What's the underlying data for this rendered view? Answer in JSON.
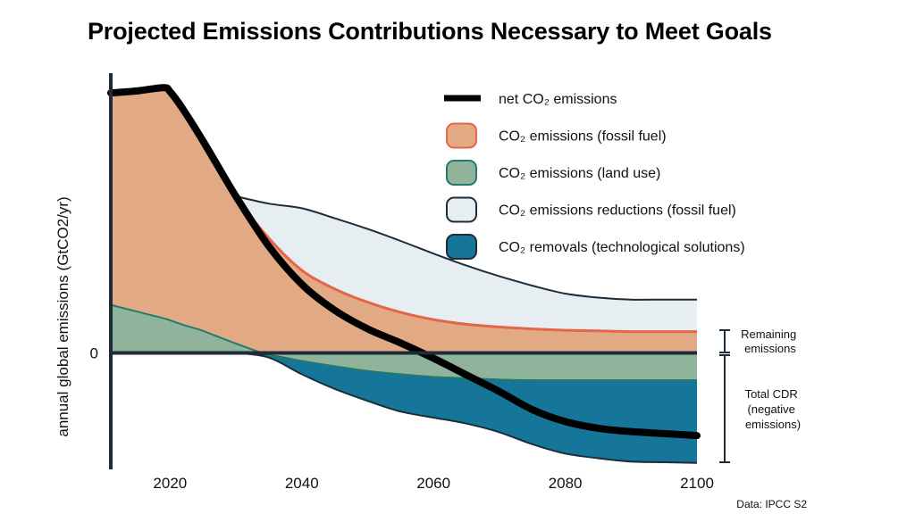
{
  "title": "Projected Emissions Contributions Necessary to Meet Goals",
  "source": "Data: IPCC S2",
  "chart_data": {
    "type": "area",
    "title": "Projected Emissions Contributions Necessary to Meet Goals",
    "xlabel": "",
    "ylabel": "annual global emissions (GtCO2/yr)",
    "x_ticks": [
      "2020",
      "2040",
      "2060",
      "2080",
      "2100"
    ],
    "y_ticks": [
      "0"
    ],
    "xlim": [
      2011,
      2100
    ],
    "ylim": [
      -17.5,
      40
    ],
    "x": [
      2011,
      2015,
      2019,
      2020,
      2022,
      2025,
      2030,
      2035,
      2040,
      2045,
      2050,
      2055,
      2060,
      2065,
      2070,
      2075,
      2080,
      2085,
      2090,
      2095,
      2100
    ],
    "series": [
      {
        "name": "net CO₂ emissions",
        "values": [
          39,
          39.3,
          39.8,
          39.2,
          36.5,
          31.8,
          23.5,
          16,
          10.3,
          6.4,
          3.6,
          1.5,
          -0.8,
          -3.3,
          -5.8,
          -8.5,
          -10.3,
          -11.3,
          -11.8,
          -12.1,
          -12.4
        ]
      },
      {
        "name": "CO₂ emissions (fossil fuel)",
        "values": [
          38.9,
          39.2,
          39.7,
          39.1,
          36.5,
          31.8,
          23.5,
          17.2,
          12.4,
          9.6,
          7.6,
          6.1,
          5.0,
          4.3,
          3.9,
          3.6,
          3.4,
          3.3,
          3.2,
          3.2,
          3.2
        ]
      },
      {
        "name": "CO₂ emissions (land use)",
        "values": [
          7.2,
          6.2,
          5.2,
          4.9,
          4.2,
          3.3,
          1.4,
          -0.3,
          -1.2,
          -2.0,
          -2.7,
          -3.2,
          -3.6,
          -3.8,
          -4.0,
          -4.1,
          -4.1,
          -4.1,
          -4.1,
          -4.1,
          -4.1
        ]
      },
      {
        "name": "CO₂ emissions reductions (fossil fuel)",
        "values": [
          0,
          0,
          0,
          0,
          0,
          0,
          0,
          5.2,
          9.3,
          10.6,
          11.0,
          10.7,
          9.9,
          8.8,
          7.6,
          6.5,
          5.5,
          5.0,
          4.8,
          4.8,
          4.8
        ]
      },
      {
        "name": "CO₂ removals (technological solutions)",
        "values": [
          0,
          0,
          0,
          0,
          0,
          0,
          0,
          -0.4,
          -2.0,
          -3.4,
          -4.5,
          -5.6,
          -6.1,
          -6.8,
          -7.9,
          -9.6,
          -11.0,
          -11.7,
          -12.2,
          -12.3,
          -12.4
        ]
      }
    ],
    "legend": [
      {
        "label": "net CO₂ emissions",
        "color": "#000000",
        "kind": "line"
      },
      {
        "label": "CO₂ emissions (fossil fuel)",
        "color": "#e1aa85",
        "stroke": "#e4654a",
        "kind": "patch"
      },
      {
        "label": "CO₂ emissions (land use)",
        "color": "#8fb49b",
        "stroke": "#237a6d",
        "kind": "patch"
      },
      {
        "label": "CO₂ emissions reductions (fossil fuel)",
        "color": "#e6eef1",
        "stroke": "#1e2b39",
        "kind": "patch"
      },
      {
        "label": "CO₂ removals (technological solutions)",
        "color": "#157699",
        "stroke": "#1e2b39",
        "kind": "patch"
      }
    ],
    "legend_position": "top-right",
    "annotations": [
      {
        "label": "Remaining emissions",
        "lines": [
          "Remaining",
          "emissions"
        ]
      },
      {
        "label": "Total CDR (negative emissions)",
        "lines": [
          "Total CDR",
          "(negative",
          "emissions)"
        ]
      }
    ],
    "colors": {
      "fossil": "#e1aa85",
      "fossil_edge": "#e4654a",
      "land": "#8fb49b",
      "land_edge": "#237a6d",
      "reduction": "#e6eef1",
      "removal": "#157699",
      "axis": "#1e2b39",
      "net": "#000000"
    }
  }
}
